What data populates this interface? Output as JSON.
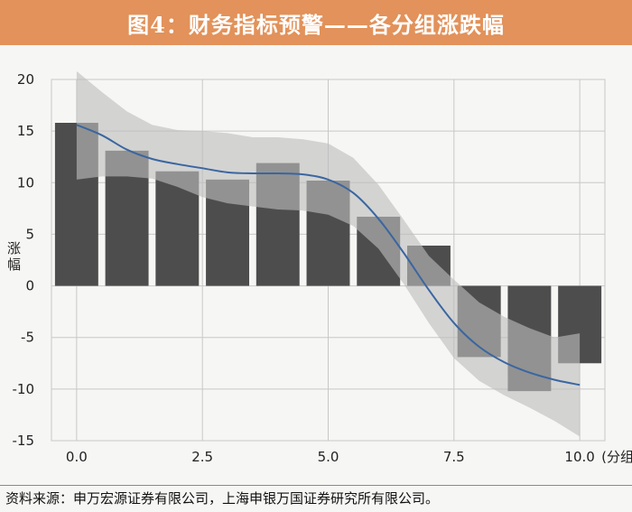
{
  "header": {
    "title": "图4：财务指标预警——各分组涨跌幅"
  },
  "colors": {
    "header_bg": "#e2925a",
    "bar": "#4d4d4d",
    "band": "#bdbdbd",
    "trend_line": "#3a66a0"
  },
  "chart_data": {
    "type": "bar",
    "title": "图4：财务指标预警——各分组涨跌幅",
    "xlabel": "(分组)",
    "ylabel": "涨幅",
    "x_ticks": [
      "0.0",
      "2.5",
      "5.0",
      "7.5",
      "10.0"
    ],
    "y_ticks": [
      "20",
      "15",
      "10",
      "5",
      "0",
      "-5",
      "-10",
      "-15"
    ],
    "xlim": [
      -0.5,
      10.5
    ],
    "ylim": [
      -15,
      20
    ],
    "grid": true,
    "categories": [
      0,
      1,
      2,
      3,
      4,
      5,
      6,
      7,
      8,
      9,
      10
    ],
    "values": [
      15.8,
      13.1,
      11.1,
      10.3,
      11.9,
      10.2,
      6.7,
      3.9,
      -6.9,
      -10.2,
      -7.5
    ],
    "trend": {
      "x": [
        0,
        0.5,
        1,
        1.5,
        2,
        2.5,
        3,
        3.5,
        4,
        4.5,
        5,
        5.5,
        6,
        6.5,
        7,
        7.5,
        8,
        8.5,
        9,
        9.5,
        10
      ],
      "y": [
        15.6,
        14.6,
        13.2,
        12.3,
        11.8,
        11.4,
        11.0,
        10.9,
        10.9,
        10.8,
        10.3,
        9.0,
        6.5,
        3.2,
        -0.4,
        -3.6,
        -5.9,
        -7.4,
        -8.4,
        -9.1,
        -9.6
      ]
    },
    "band": {
      "x": [
        0,
        0.5,
        1,
        1.5,
        2,
        2.5,
        3,
        3.5,
        4,
        4.5,
        5,
        5.5,
        6,
        6.5,
        7,
        7.5,
        8,
        8.5,
        9,
        9.5,
        10
      ],
      "upper": [
        20.8,
        18.8,
        16.9,
        15.6,
        15.1,
        15.0,
        14.8,
        14.4,
        14.4,
        14.2,
        13.8,
        12.4,
        9.8,
        6.4,
        2.9,
        0.6,
        -1.6,
        -3.0,
        -4.1,
        -5.0,
        -4.6
      ],
      "lower": [
        10.3,
        10.6,
        10.6,
        10.4,
        9.6,
        8.6,
        8.0,
        7.7,
        7.4,
        7.3,
        6.9,
        5.8,
        3.6,
        0.2,
        -3.6,
        -7.0,
        -9.2,
        -10.6,
        -11.8,
        -13.1,
        -14.6
      ]
    }
  },
  "footer": {
    "source": "资料来源：申万宏源证券有限公司，上海申银万国证券研究所有限公司。"
  }
}
